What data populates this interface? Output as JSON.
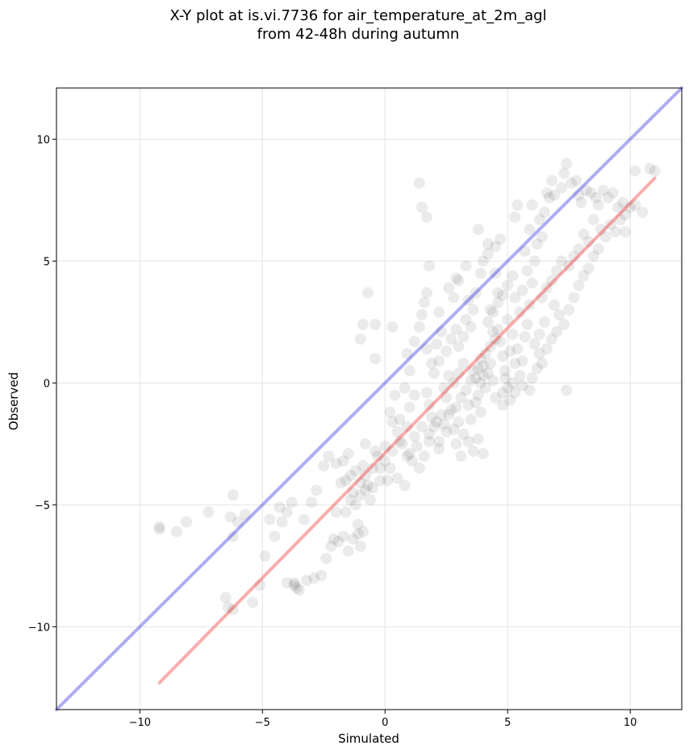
{
  "chart_data": {
    "type": "scatter",
    "title": [
      "X-Y plot at is.vi.7736 for air_temperature_at_2m_agl",
      "from 42-48h during autumn"
    ],
    "xlabel": "Simulated",
    "ylabel": "Observed",
    "xlim": [
      -13.4,
      12.1
    ],
    "ylim": [
      -13.4,
      12.1
    ],
    "x_ticks": [
      -10,
      -5,
      0,
      5,
      10
    ],
    "y_ticks": [
      -10,
      -5,
      0,
      5,
      10
    ],
    "x_tick_labels": [
      "−10",
      "−5",
      "0",
      "5",
      "10"
    ],
    "y_tick_labels": [
      "−10",
      "−5",
      "0",
      "5",
      "10"
    ],
    "grid": true,
    "point_color": "#000000",
    "point_alpha": 0.08,
    "series": [
      {
        "kind": "scatter",
        "points": [
          [
            -9.2,
            -6.0
          ],
          [
            -9.2,
            -5.9
          ],
          [
            -8.5,
            -6.1
          ],
          [
            -8.1,
            -5.7
          ],
          [
            -7.2,
            -5.3
          ],
          [
            -6.2,
            -4.6
          ],
          [
            -6.3,
            -5.5
          ],
          [
            -6.2,
            -6.3
          ],
          [
            -6.0,
            -5.7
          ],
          [
            -5.7,
            -5.4
          ],
          [
            -6.5,
            -8.8
          ],
          [
            -6.4,
            -9.2
          ],
          [
            -6.2,
            -9.3
          ],
          [
            -5.4,
            -9.0
          ],
          [
            -5.1,
            -8.3
          ],
          [
            -4.9,
            -7.1
          ],
          [
            -4.7,
            -5.6
          ],
          [
            -4.5,
            -6.3
          ],
          [
            -4.3,
            -5.1
          ],
          [
            -4.2,
            -5.7
          ],
          [
            -4.0,
            -5.3
          ],
          [
            -3.8,
            -4.9
          ],
          [
            -3.7,
            -8.2
          ],
          [
            -3.6,
            -8.4
          ],
          [
            -3.5,
            -8.5
          ],
          [
            -3.7,
            -8.3
          ],
          [
            -4.0,
            -8.2
          ],
          [
            -3.2,
            -8.1
          ],
          [
            -2.9,
            -8.0
          ],
          [
            -2.6,
            -7.9
          ],
          [
            -2.4,
            -7.2
          ],
          [
            -2.2,
            -6.7
          ],
          [
            -2.1,
            -6.4
          ],
          [
            -3.3,
            -5.6
          ],
          [
            -3.0,
            -4.9
          ],
          [
            -2.8,
            -4.4
          ],
          [
            -2.5,
            -3.4
          ],
          [
            -2.3,
            -3.0
          ],
          [
            -2.0,
            -3.3
          ],
          [
            -1.8,
            -4.1
          ],
          [
            -1.7,
            -3.2
          ],
          [
            -1.5,
            -2.9
          ],
          [
            -1.4,
            -3.8
          ],
          [
            -1.3,
            -4.5
          ],
          [
            -1.2,
            -5.0
          ],
          [
            -1.0,
            -4.6
          ],
          [
            -0.9,
            -3.4
          ],
          [
            -0.8,
            -2.5
          ],
          [
            -0.8,
            -3.8
          ],
          [
            -0.6,
            -4.8
          ],
          [
            -1.1,
            -5.8
          ],
          [
            -1.3,
            -6.4
          ],
          [
            -1.5,
            -6.9
          ],
          [
            -1.0,
            -6.7
          ],
          [
            -1.1,
            -6.2
          ],
          [
            -0.9,
            -6.1
          ],
          [
            -0.7,
            -4.2
          ],
          [
            -0.5,
            -3.5
          ],
          [
            -0.3,
            -3.0
          ],
          [
            -0.2,
            -4.0
          ],
          [
            -1.7,
            -6.3
          ],
          [
            -1.9,
            -6.5
          ],
          [
            -2.0,
            -5.3
          ],
          [
            -1.6,
            -4.0
          ],
          [
            -1.2,
            -3.6
          ],
          [
            -1.0,
            -4.1
          ],
          [
            -0.4,
            -2.8
          ],
          [
            0.0,
            -3.2
          ],
          [
            0.2,
            -3.5
          ],
          [
            0.3,
            -2.8
          ],
          [
            0.1,
            -4.0
          ],
          [
            0.5,
            -3.9
          ],
          [
            0.8,
            -4.2
          ],
          [
            0.9,
            -3.0
          ],
          [
            0.7,
            -2.5
          ],
          [
            1.1,
            -3.2
          ],
          [
            1.3,
            -2.6
          ],
          [
            1.4,
            -3.5
          ],
          [
            1.6,
            -3.0
          ],
          [
            1.8,
            -2.4
          ],
          [
            0.2,
            -1.2
          ],
          [
            0.4,
            -0.5
          ],
          [
            0.6,
            -1.5
          ],
          [
            0.8,
            -0.2
          ],
          [
            1.0,
            -1.0
          ],
          [
            1.2,
            -0.5
          ],
          [
            1.0,
            0.5
          ],
          [
            0.9,
            1.2
          ],
          [
            1.2,
            1.7
          ],
          [
            1.4,
            2.3
          ],
          [
            1.5,
            2.8
          ],
          [
            1.6,
            3.3
          ],
          [
            1.7,
            3.7
          ],
          [
            1.8,
            4.8
          ],
          [
            1.5,
            7.2
          ],
          [
            1.4,
            8.2
          ],
          [
            1.7,
            6.8
          ],
          [
            -0.7,
            3.7
          ],
          [
            -0.9,
            2.4
          ],
          [
            -1.0,
            1.8
          ],
          [
            -0.4,
            2.4
          ],
          [
            0.3,
            2.3
          ],
          [
            -0.4,
            1.0
          ],
          [
            1.7,
            1.4
          ],
          [
            1.9,
            0.8
          ],
          [
            2.1,
            1.6
          ],
          [
            2.3,
            2.1
          ],
          [
            2.2,
            2.9
          ],
          [
            2.6,
            3.9
          ],
          [
            2.9,
            4.3
          ],
          [
            1.7,
            -0.4
          ],
          [
            1.8,
            -0.9
          ],
          [
            1.9,
            -1.4
          ],
          [
            2.0,
            -1.8
          ],
          [
            1.8,
            -2.1
          ],
          [
            2.2,
            -2.4
          ],
          [
            2.3,
            -1.3
          ],
          [
            2.5,
            -0.6
          ],
          [
            2.7,
            -1.1
          ],
          [
            2.8,
            -1.9
          ],
          [
            2.9,
            -2.5
          ],
          [
            3.1,
            -3.0
          ],
          [
            3.2,
            -2.1
          ],
          [
            3.4,
            -2.4
          ],
          [
            3.5,
            -1.5
          ],
          [
            3.6,
            -2.8
          ],
          [
            3.8,
            -2.3
          ],
          [
            3.9,
            -1.2
          ],
          [
            4.0,
            -2.9
          ],
          [
            3.8,
            -0.5
          ],
          [
            2.4,
            -0.2
          ],
          [
            2.6,
            0.3
          ],
          [
            2.8,
            0.0
          ],
          [
            3.0,
            0.4
          ],
          [
            3.2,
            0.8
          ],
          [
            3.3,
            -0.3
          ],
          [
            3.5,
            0.1
          ],
          [
            3.6,
            0.5
          ],
          [
            3.7,
            0.2
          ],
          [
            3.8,
            0.6
          ],
          [
            3.9,
            0.0
          ],
          [
            4.0,
            0.3
          ],
          [
            4.1,
            -0.2
          ],
          [
            4.2,
            0.4
          ],
          [
            4.3,
            0.8
          ],
          [
            4.4,
            0.1
          ],
          [
            4.0,
            0.7
          ],
          [
            3.9,
            1.0
          ],
          [
            4.1,
            1.2
          ],
          [
            4.3,
            1.5
          ],
          [
            2.0,
            0.4
          ],
          [
            2.2,
            0.9
          ],
          [
            2.5,
            1.3
          ],
          [
            2.7,
            1.8
          ],
          [
            2.9,
            2.2
          ],
          [
            3.0,
            1.5
          ],
          [
            3.2,
            1.9
          ],
          [
            3.3,
            2.6
          ],
          [
            3.5,
            2.3
          ],
          [
            3.6,
            3.0
          ],
          [
            3.4,
            3.4
          ],
          [
            3.7,
            3.7
          ],
          [
            3.9,
            4.5
          ],
          [
            3.3,
            4.8
          ],
          [
            3.0,
            4.2
          ],
          [
            2.8,
            3.5
          ],
          [
            4.0,
            5.0
          ],
          [
            4.2,
            5.3
          ],
          [
            4.5,
            5.6
          ],
          [
            4.7,
            5.9
          ],
          [
            3.8,
            6.3
          ],
          [
            4.2,
            5.7
          ],
          [
            4.5,
            4.5
          ],
          [
            4.6,
            3.7
          ],
          [
            4.4,
            2.9
          ],
          [
            4.6,
            2.2
          ],
          [
            4.7,
            1.7
          ],
          [
            4.8,
            1.1
          ],
          [
            4.9,
            0.5
          ],
          [
            5.0,
            -0.2
          ],
          [
            5.1,
            -0.7
          ],
          [
            5.3,
            -0.4
          ],
          [
            4.8,
            -0.9
          ],
          [
            5.5,
            0.3
          ],
          [
            5.6,
            0.9
          ],
          [
            5.4,
            1.4
          ],
          [
            5.7,
            1.9
          ],
          [
            5.8,
            2.4
          ],
          [
            5.5,
            2.9
          ],
          [
            5.9,
            3.2
          ],
          [
            5.3,
            3.5
          ],
          [
            5.6,
            3.8
          ],
          [
            6.0,
            4.1
          ],
          [
            5.8,
            4.6
          ],
          [
            6.1,
            5.0
          ],
          [
            5.7,
            5.4
          ],
          [
            6.2,
            5.7
          ],
          [
            6.4,
            6.0
          ],
          [
            5.9,
            6.3
          ],
          [
            6.3,
            6.7
          ],
          [
            6.5,
            7.0
          ],
          [
            6.0,
            7.3
          ],
          [
            6.7,
            7.6
          ],
          [
            5.4,
            7.3
          ],
          [
            5.3,
            6.8
          ],
          [
            6.6,
            7.8
          ],
          [
            6.9,
            7.7
          ],
          [
            7.2,
            8.0
          ],
          [
            6.8,
            8.3
          ],
          [
            7.3,
            8.6
          ],
          [
            7.4,
            9.0
          ],
          [
            7.6,
            8.2
          ],
          [
            7.8,
            8.3
          ],
          [
            7.9,
            7.7
          ],
          [
            8.0,
            7.4
          ],
          [
            8.2,
            7.9
          ],
          [
            8.4,
            7.8
          ],
          [
            8.6,
            7.6
          ],
          [
            8.7,
            7.3
          ],
          [
            8.9,
            7.9
          ],
          [
            9.1,
            7.6
          ],
          [
            9.3,
            7.8
          ],
          [
            9.5,
            7.2
          ],
          [
            9.7,
            7.4
          ],
          [
            9.8,
            6.9
          ],
          [
            10.0,
            7.2
          ],
          [
            10.2,
            7.3
          ],
          [
            10.5,
            7.0
          ],
          [
            10.2,
            8.7
          ],
          [
            10.8,
            8.8
          ],
          [
            11.0,
            8.7
          ],
          [
            8.5,
            6.7
          ],
          [
            8.8,
            6.3
          ],
          [
            9.0,
            6.0
          ],
          [
            9.2,
            6.5
          ],
          [
            9.4,
            6.2
          ],
          [
            9.6,
            6.7
          ],
          [
            9.8,
            6.2
          ],
          [
            8.3,
            5.8
          ],
          [
            8.1,
            6.1
          ],
          [
            7.9,
            5.5
          ],
          [
            7.7,
            5.2
          ],
          [
            7.5,
            4.8
          ],
          [
            7.2,
            5.0
          ],
          [
            7.0,
            4.6
          ],
          [
            6.8,
            4.2
          ],
          [
            6.6,
            3.9
          ],
          [
            6.4,
            3.5
          ],
          [
            6.9,
            3.2
          ],
          [
            7.1,
            2.8
          ],
          [
            7.3,
            2.4
          ],
          [
            7.5,
            3.0
          ],
          [
            7.7,
            3.5
          ],
          [
            7.9,
            4.0
          ],
          [
            8.1,
            4.4
          ],
          [
            8.3,
            4.7
          ],
          [
            8.5,
            5.2
          ],
          [
            8.7,
            5.5
          ],
          [
            6.5,
            2.5
          ],
          [
            6.3,
            2.0
          ],
          [
            6.1,
            1.6
          ],
          [
            6.3,
            1.2
          ],
          [
            6.6,
            1.4
          ],
          [
            6.8,
            1.8
          ],
          [
            7.0,
            2.1
          ],
          [
            6.2,
            0.6
          ],
          [
            6.0,
            0.2
          ],
          [
            6.4,
            0.8
          ],
          [
            5.9,
            -0.3
          ],
          [
            5.6,
            -0.1
          ],
          [
            7.4,
            -0.3
          ],
          [
            4.5,
            -0.6
          ],
          [
            4.8,
            -0.4
          ],
          [
            5.2,
            0.0
          ],
          [
            3.0,
            -1.6
          ],
          [
            2.5,
            -2.0
          ],
          [
            2.1,
            -1.6
          ],
          [
            1.5,
            -1.8
          ],
          [
            1.2,
            -2.2
          ],
          [
            1.0,
            -2.9
          ],
          [
            0.6,
            -2.4
          ],
          [
            0.9,
            -1.8
          ],
          [
            0.3,
            -1.6
          ],
          [
            0.5,
            -2.0
          ],
          [
            0.0,
            -2.6
          ],
          [
            -0.2,
            -3.5
          ],
          [
            -0.5,
            -4.3
          ],
          [
            -0.8,
            -4.4
          ],
          [
            -1.4,
            -4.8
          ],
          [
            -1.6,
            -5.3
          ],
          [
            4.4,
            2.1
          ],
          [
            4.5,
            1.8
          ],
          [
            4.2,
            2.5
          ],
          [
            4.3,
            3.0
          ],
          [
            4.6,
            3.3
          ],
          [
            4.8,
            3.6
          ],
          [
            5.0,
            4.0
          ],
          [
            5.2,
            4.4
          ],
          [
            5.0,
            2.6
          ],
          [
            5.2,
            2.0
          ],
          [
            5.1,
            1.3
          ],
          [
            5.3,
            0.8
          ],
          [
            4.9,
            0.2
          ],
          [
            3.7,
            -0.8
          ],
          [
            3.4,
            -0.9
          ],
          [
            3.1,
            -0.6
          ],
          [
            2.9,
            -1.0
          ],
          [
            2.6,
            -1.3
          ],
          [
            2.4,
            -1.7
          ],
          [
            2.2,
            -2.7
          ]
        ]
      },
      {
        "kind": "line",
        "name": "identity",
        "color": "#0000dd",
        "alpha": 0.32,
        "points": [
          [
            -13.4,
            -13.4
          ],
          [
            12.1,
            12.1
          ]
        ]
      },
      {
        "kind": "line",
        "name": "fit",
        "color": "#ee0000",
        "alpha": 0.32,
        "points": [
          [
            -9.2,
            -12.3
          ],
          [
            11.0,
            8.4
          ]
        ]
      }
    ]
  }
}
